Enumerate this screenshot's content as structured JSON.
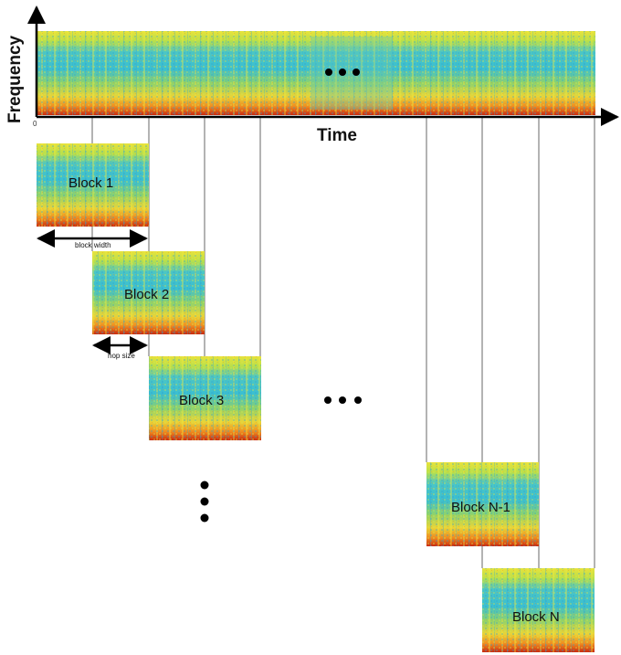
{
  "axes": {
    "y_label": "Frequency",
    "x_label": "Time",
    "origin_tick": "0"
  },
  "blocks": [
    {
      "label": "Block 1"
    },
    {
      "label": "Block 2"
    },
    {
      "label": "Block 3"
    },
    {
      "label": "Block N-1"
    },
    {
      "label": "Block N"
    }
  ],
  "annotations": {
    "block_width": "block width",
    "hop_size": "hop size"
  },
  "colors": {
    "spectrogram_top": "#f2e030",
    "spectrogram_mid": "#36c0c8",
    "spectrogram_low": "#d93a12",
    "guide_lines": "#9a9a9a",
    "axis": "#000000"
  },
  "icons": [
    "ellipsis-horizontal-icon",
    "ellipsis-vertical-icon",
    "double-arrow-icon"
  ]
}
